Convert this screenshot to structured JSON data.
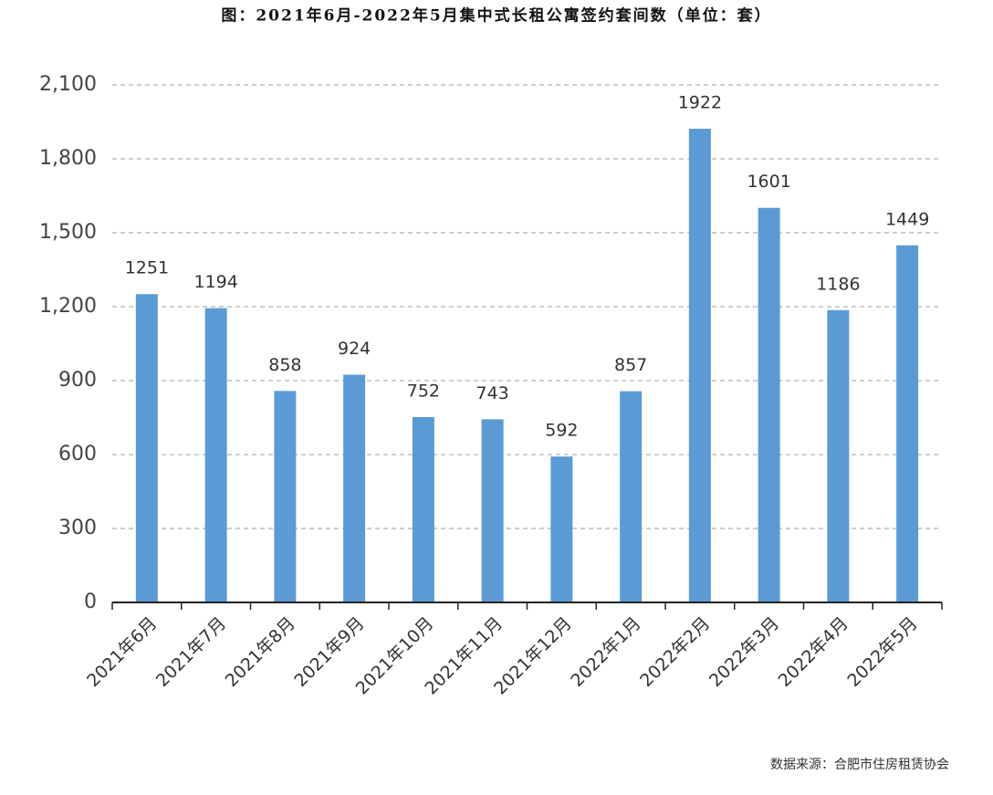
{
  "chart_data": {
    "type": "bar",
    "title": "图：2021年6月-2022年5月集中式长租公寓签约套间数（单位：套）",
    "categories": [
      "2021年6月",
      "2021年7月",
      "2021年8月",
      "2021年9月",
      "2021年10月",
      "2021年11月",
      "2021年12月",
      "2022年1月",
      "2022年2月",
      "2022年3月",
      "2022年4月",
      "2022年5月"
    ],
    "values": [
      1251,
      1194,
      858,
      924,
      752,
      743,
      592,
      857,
      1922,
      1601,
      1186,
      1449
    ],
    "color": "#5b9bd5",
    "ylim": [
      0,
      2100
    ],
    "yticks": [
      0,
      300,
      600,
      900,
      {
        "value": 1200,
        "label": "1,200"
      },
      {
        "value": 1500,
        "label": "1,500"
      },
      {
        "value": 1800,
        "label": "1,800"
      },
      {
        "value": 2100,
        "label": "2,100"
      }
    ],
    "grid": true,
    "source": "数据来源：合肥市住房租赁协会"
  }
}
